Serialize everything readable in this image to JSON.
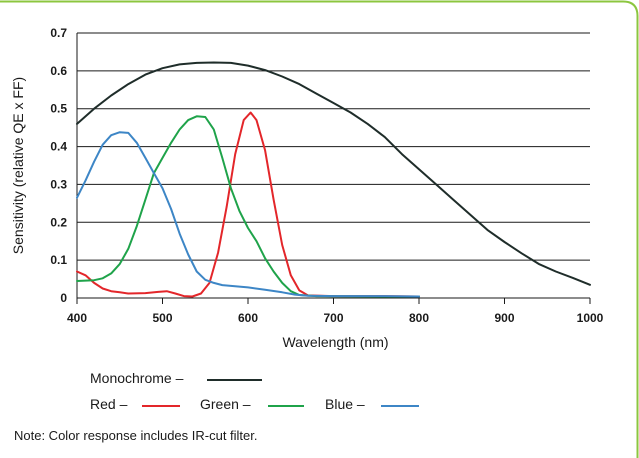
{
  "colors": {
    "accent_border": "#8cc63f",
    "monochrome": "#1f2d2a",
    "red": "#e3262a",
    "green": "#1fa34a",
    "blue": "#3d86c6",
    "grid": "#1a1a1a"
  },
  "chart_data": {
    "type": "line",
    "xlabel": "Wavelength (nm)",
    "ylabel": "Sensitivity (relative QE x FF)",
    "xlim": [
      400,
      1000
    ],
    "ylim": [
      0,
      0.7
    ],
    "xticks": [
      "400",
      "500",
      "600",
      "700",
      "800",
      "900",
      "1000"
    ],
    "yticks": [
      "0",
      "0.1",
      "0.2",
      "0.3",
      "0.4",
      "0.5",
      "0.6",
      "0.7"
    ],
    "grid": "horizontal",
    "series": [
      {
        "name": "Monochrome",
        "color": "#1f2d2a",
        "points": [
          [
            400,
            0.46
          ],
          [
            420,
            0.5
          ],
          [
            440,
            0.535
          ],
          [
            460,
            0.565
          ],
          [
            480,
            0.59
          ],
          [
            500,
            0.607
          ],
          [
            520,
            0.617
          ],
          [
            540,
            0.621
          ],
          [
            560,
            0.622
          ],
          [
            580,
            0.621
          ],
          [
            600,
            0.614
          ],
          [
            620,
            0.602
          ],
          [
            640,
            0.585
          ],
          [
            660,
            0.565
          ],
          [
            680,
            0.54
          ],
          [
            700,
            0.515
          ],
          [
            720,
            0.49
          ],
          [
            740,
            0.46
          ],
          [
            760,
            0.425
          ],
          [
            780,
            0.38
          ],
          [
            800,
            0.34
          ],
          [
            820,
            0.3
          ],
          [
            840,
            0.26
          ],
          [
            860,
            0.22
          ],
          [
            880,
            0.18
          ],
          [
            900,
            0.148
          ],
          [
            920,
            0.118
          ],
          [
            940,
            0.09
          ],
          [
            960,
            0.07
          ],
          [
            980,
            0.053
          ],
          [
            1000,
            0.035
          ]
        ]
      },
      {
        "name": "Red",
        "color": "#e3262a",
        "points": [
          [
            400,
            0.07
          ],
          [
            410,
            0.06
          ],
          [
            420,
            0.04
          ],
          [
            430,
            0.025
          ],
          [
            440,
            0.018
          ],
          [
            450,
            0.015
          ],
          [
            460,
            0.012
          ],
          [
            480,
            0.013
          ],
          [
            495,
            0.016
          ],
          [
            505,
            0.018
          ],
          [
            515,
            0.012
          ],
          [
            525,
            0.005
          ],
          [
            535,
            0.004
          ],
          [
            545,
            0.012
          ],
          [
            555,
            0.04
          ],
          [
            565,
            0.12
          ],
          [
            575,
            0.24
          ],
          [
            585,
            0.38
          ],
          [
            595,
            0.47
          ],
          [
            603,
            0.49
          ],
          [
            610,
            0.47
          ],
          [
            620,
            0.39
          ],
          [
            630,
            0.26
          ],
          [
            640,
            0.14
          ],
          [
            650,
            0.06
          ],
          [
            660,
            0.02
          ],
          [
            670,
            0.007
          ],
          [
            700,
            0.005
          ],
          [
            760,
            0.005
          ],
          [
            800,
            0.004
          ]
        ]
      },
      {
        "name": "Green",
        "color": "#1fa34a",
        "points": [
          [
            400,
            0.045
          ],
          [
            420,
            0.047
          ],
          [
            430,
            0.052
          ],
          [
            440,
            0.065
          ],
          [
            450,
            0.09
          ],
          [
            460,
            0.13
          ],
          [
            470,
            0.19
          ],
          [
            480,
            0.26
          ],
          [
            490,
            0.33
          ],
          [
            500,
            0.37
          ],
          [
            510,
            0.41
          ],
          [
            520,
            0.445
          ],
          [
            530,
            0.47
          ],
          [
            540,
            0.48
          ],
          [
            550,
            0.478
          ],
          [
            560,
            0.445
          ],
          [
            570,
            0.37
          ],
          [
            580,
            0.29
          ],
          [
            590,
            0.23
          ],
          [
            600,
            0.185
          ],
          [
            610,
            0.15
          ],
          [
            620,
            0.105
          ],
          [
            630,
            0.07
          ],
          [
            640,
            0.04
          ],
          [
            650,
            0.018
          ],
          [
            660,
            0.008
          ],
          [
            680,
            0.005
          ],
          [
            760,
            0.004
          ],
          [
            800,
            0.004
          ]
        ]
      },
      {
        "name": "Blue",
        "color": "#3d86c6",
        "points": [
          [
            400,
            0.265
          ],
          [
            410,
            0.31
          ],
          [
            420,
            0.36
          ],
          [
            430,
            0.405
          ],
          [
            440,
            0.43
          ],
          [
            450,
            0.438
          ],
          [
            460,
            0.436
          ],
          [
            470,
            0.41
          ],
          [
            480,
            0.37
          ],
          [
            490,
            0.33
          ],
          [
            500,
            0.29
          ],
          [
            510,
            0.235
          ],
          [
            520,
            0.17
          ],
          [
            530,
            0.115
          ],
          [
            540,
            0.07
          ],
          [
            550,
            0.048
          ],
          [
            560,
            0.04
          ],
          [
            570,
            0.034
          ],
          [
            580,
            0.032
          ],
          [
            590,
            0.03
          ],
          [
            600,
            0.028
          ],
          [
            620,
            0.022
          ],
          [
            640,
            0.015
          ],
          [
            655,
            0.009
          ],
          [
            670,
            0.006
          ],
          [
            700,
            0.005
          ],
          [
            760,
            0.005
          ],
          [
            800,
            0.004
          ]
        ]
      }
    ]
  },
  "legend": {
    "monochrome_label": "Monochrome –",
    "red_label": "Red –",
    "green_label": "Green –",
    "blue_label": "Blue –"
  },
  "note": "Note: Color response includes IR-cut filter."
}
